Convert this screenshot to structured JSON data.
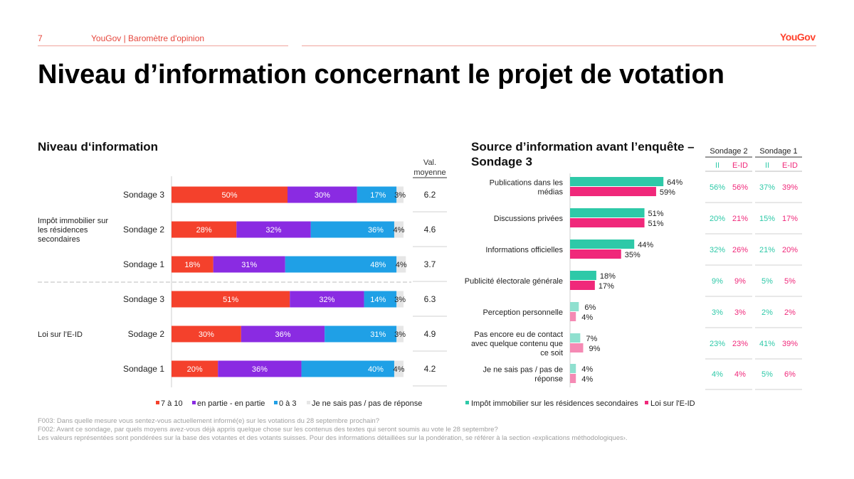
{
  "header": {
    "page_number": "7",
    "source": "YouGov | Baromètre d'opinion",
    "logo": "YouGov"
  },
  "title": "Niveau d’information concernant le projet de votation",
  "left_panel": {
    "title": "Niveau d‘information"
  },
  "right_panel": {
    "title_line1": "Source d’information avant l’enquête –",
    "title_line2": "Sondage 3"
  },
  "colors": {
    "c1": "#f4412c",
    "c2": "#8a2be2",
    "c3": "#1fa0e6",
    "c4": "#e6e6e6",
    "teal": "#2ec9a8",
    "pink": "#f0287a",
    "teal_light": "#8fe0cf",
    "pink_light": "#f58ab4"
  },
  "chart_data": [
    {
      "type": "bar",
      "orientation": "horizontal-stacked",
      "title": "Niveau d‘information",
      "value_column_header": "Val. moyenne",
      "groups": [
        {
          "label": "Impôt immobilier sur les résidences secondaires",
          "rows": [
            {
              "label": "Sondage 3",
              "values": [
                50,
                30,
                17,
                3
              ],
              "mean": "6.2"
            },
            {
              "label": "Sondage 2",
              "values": [
                28,
                32,
                36,
                4
              ],
              "mean": "4.6"
            },
            {
              "label": "Sondage 1",
              "values": [
                18,
                31,
                48,
                4
              ],
              "mean": "3.7"
            }
          ]
        },
        {
          "label": "Loi sur l’E-ID",
          "rows": [
            {
              "label": "Sondage 3",
              "values": [
                51,
                32,
                14,
                3
              ],
              "mean": "6.3"
            },
            {
              "label": "Sodage 2",
              "values": [
                30,
                36,
                31,
                3
              ],
              "mean": "4.9"
            },
            {
              "label": "Sondage 1",
              "values": [
                20,
                36,
                40,
                4
              ],
              "mean": "4.2"
            }
          ]
        }
      ],
      "series": [
        {
          "name": "7 à 10"
        },
        {
          "name": "en partie - en partie"
        },
        {
          "name": "0 à 3"
        },
        {
          "name": "Je ne sais pas / pas de réponse"
        }
      ],
      "xlim": [
        0,
        100
      ]
    },
    {
      "type": "bar",
      "orientation": "horizontal-grouped",
      "title": "Source d’information avant l’enquête – Sondage 3",
      "categories": [
        "Publications dans les médias",
        "Discussions privées",
        "Informations officielles",
        "Publicité électorale générale",
        "Perception personnelle",
        "Pas encore eu de contact avec quelque contenu que ce soit",
        "Je ne sais pas / pas de réponse"
      ],
      "series": [
        {
          "name": "Impôt immobilier sur les résidences secondaires",
          "values": [
            64,
            51,
            44,
            18,
            6,
            7,
            4
          ]
        },
        {
          "name": "Loi sur l'E-ID",
          "values": [
            59,
            51,
            35,
            17,
            4,
            9,
            4
          ]
        }
      ],
      "comparison_table": {
        "headers": [
          "Sondage 2",
          "Sondage 1"
        ],
        "subheaders": [
          "II",
          "E-ID",
          "II",
          "E-ID"
        ],
        "rows": [
          [
            "56%",
            "56%",
            "37%",
            "39%"
          ],
          [
            "20%",
            "21%",
            "15%",
            "17%"
          ],
          [
            "32%",
            "26%",
            "21%",
            "20%"
          ],
          [
            "9%",
            "9%",
            "5%",
            "5%"
          ],
          [
            "3%",
            "3%",
            "2%",
            "2%"
          ],
          [
            "23%",
            "23%",
            "41%",
            "39%"
          ],
          [
            "4%",
            "4%",
            "5%",
            "6%"
          ]
        ]
      }
    }
  ],
  "footnotes": [
    "F003: Dans quelle mesure vous sentez-vous actuellement informé(e) sur les votations du 28 septembre prochain?",
    "F002: Avant ce sondage, par quels moyens avez-vous déjà appris quelque chose sur les contenus des textes qui seront soumis au vote le 28 septembre?",
    "Les valeurs représentées sont pondérées sur la base des votantes et des votants suisses. Pour des informations détaillées sur la pondération, se référer à la section ‹explications méthodologiques›."
  ]
}
